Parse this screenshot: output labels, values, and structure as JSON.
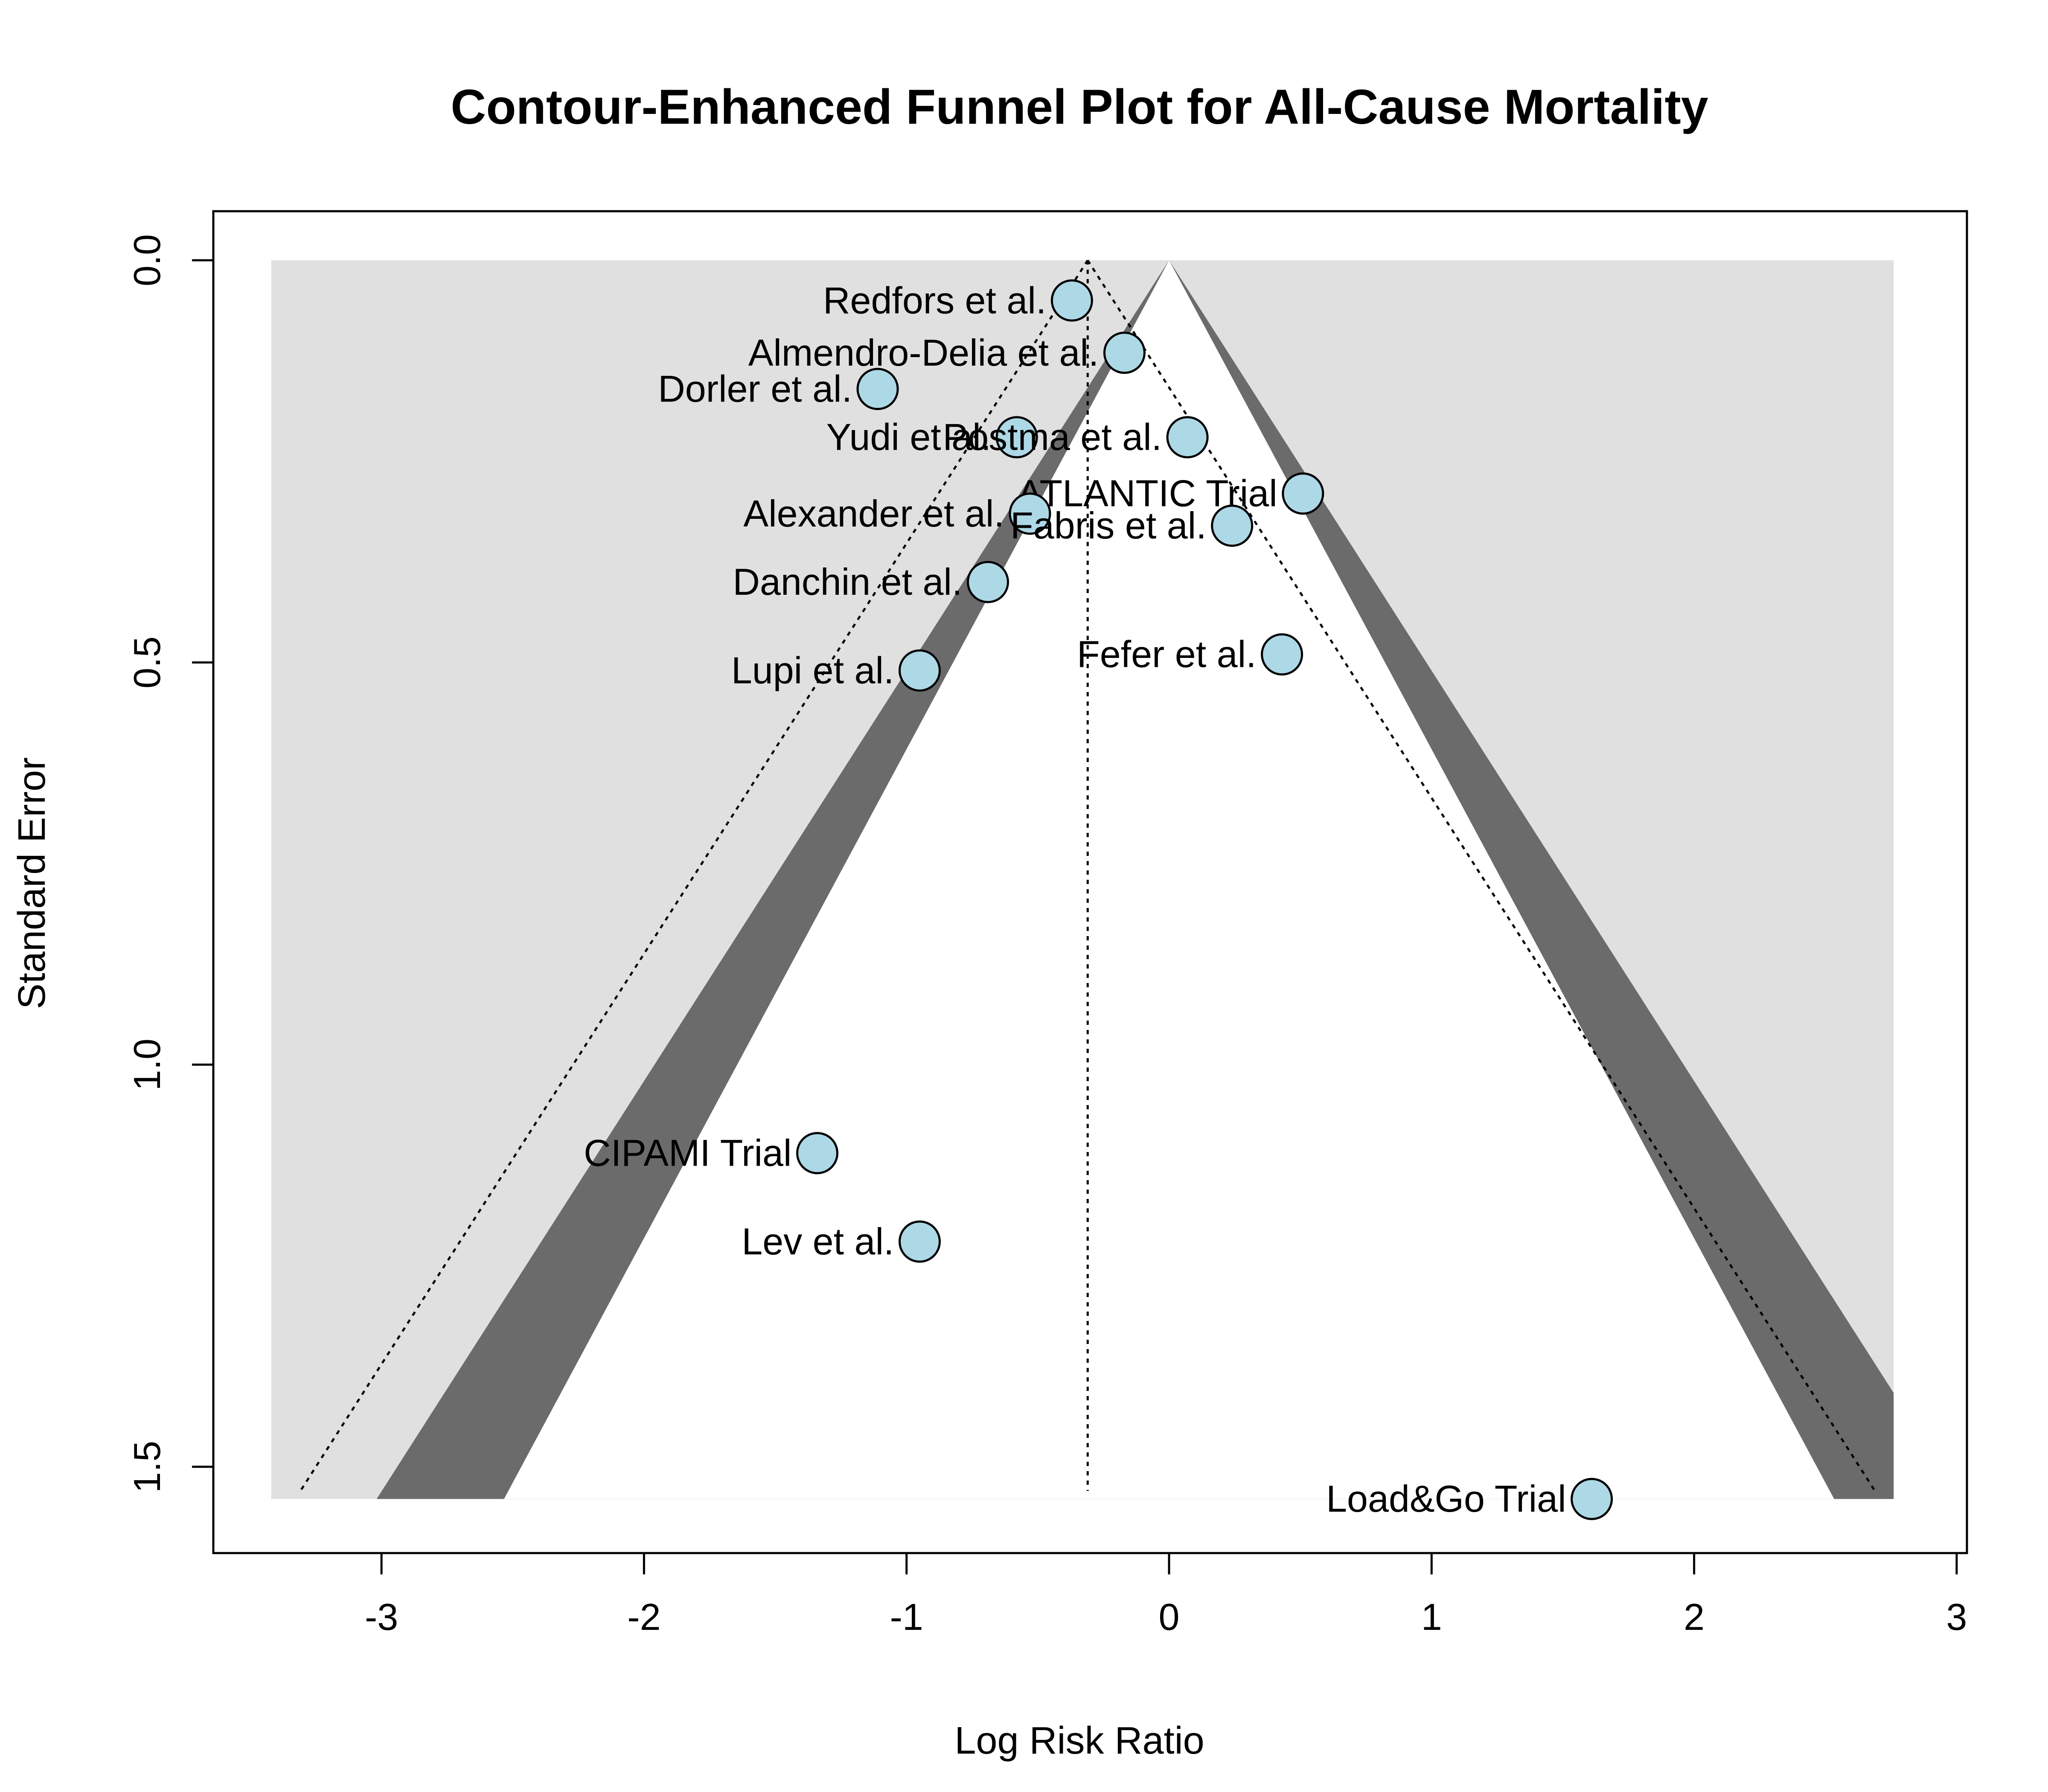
{
  "chart_data": {
    "type": "scatter",
    "title": "Contour-Enhanced Funnel Plot for All-Cause Mortality",
    "xlabel": "Log Risk Ratio",
    "ylabel": "Standard Error",
    "xlim": [
      -3.5,
      3.0
    ],
    "ylim": [
      0.0,
      1.55
    ],
    "y_reversed": true,
    "x_ticks": [
      -3,
      -2,
      -1,
      0,
      1,
      2,
      3
    ],
    "x_tick_labels": [
      "-3",
      "-2",
      "-1",
      "0",
      "1",
      "2",
      "3"
    ],
    "y_ticks": [
      0.0,
      0.5,
      1.0,
      1.5
    ],
    "y_tick_labels": [
      "0.0",
      "0.5",
      "1.0",
      "1.5"
    ],
    "pooled_estimate": -0.31,
    "contour_levels": [
      0.1,
      0.05,
      0.01
    ],
    "contour_colors": {
      "p_below_0.05": "#ffffff",
      "p_0.05_to_0.10": "#6b6b6b",
      "p_below_0.10_outer": "#e0e0e0"
    },
    "point_fill": "#add8e6",
    "point_stroke": "#000000",
    "grid": false,
    "studies": [
      {
        "label": "Redfors et al.",
        "x": -0.37,
        "y": 0.05
      },
      {
        "label": "Almendro-Delia et al.",
        "x": -0.17,
        "y": 0.115
      },
      {
        "label": "Dorler et al.",
        "x": -1.11,
        "y": 0.16
      },
      {
        "label": "Yudi et al.",
        "x": -0.58,
        "y": 0.22
      },
      {
        "label": "Postma et al.",
        "x": 0.07,
        "y": 0.22
      },
      {
        "label": "ATLANTIC Trial",
        "x": 0.51,
        "y": 0.29
      },
      {
        "label": "Alexander et al.",
        "x": -0.53,
        "y": 0.315
      },
      {
        "label": "Fabris et al.",
        "x": 0.24,
        "y": 0.33
      },
      {
        "label": "Danchin et al.",
        "x": -0.69,
        "y": 0.4
      },
      {
        "label": "Fefer et al.",
        "x": 0.43,
        "y": 0.49
      },
      {
        "label": "Lupi et al.",
        "x": -0.95,
        "y": 0.51
      },
      {
        "label": "CIPAMI Trial",
        "x": -1.34,
        "y": 1.11
      },
      {
        "label": "Lev et al.",
        "x": -0.95,
        "y": 1.22
      },
      {
        "label": "Load&Go Trial",
        "x": 1.61,
        "y": 1.54
      }
    ]
  }
}
